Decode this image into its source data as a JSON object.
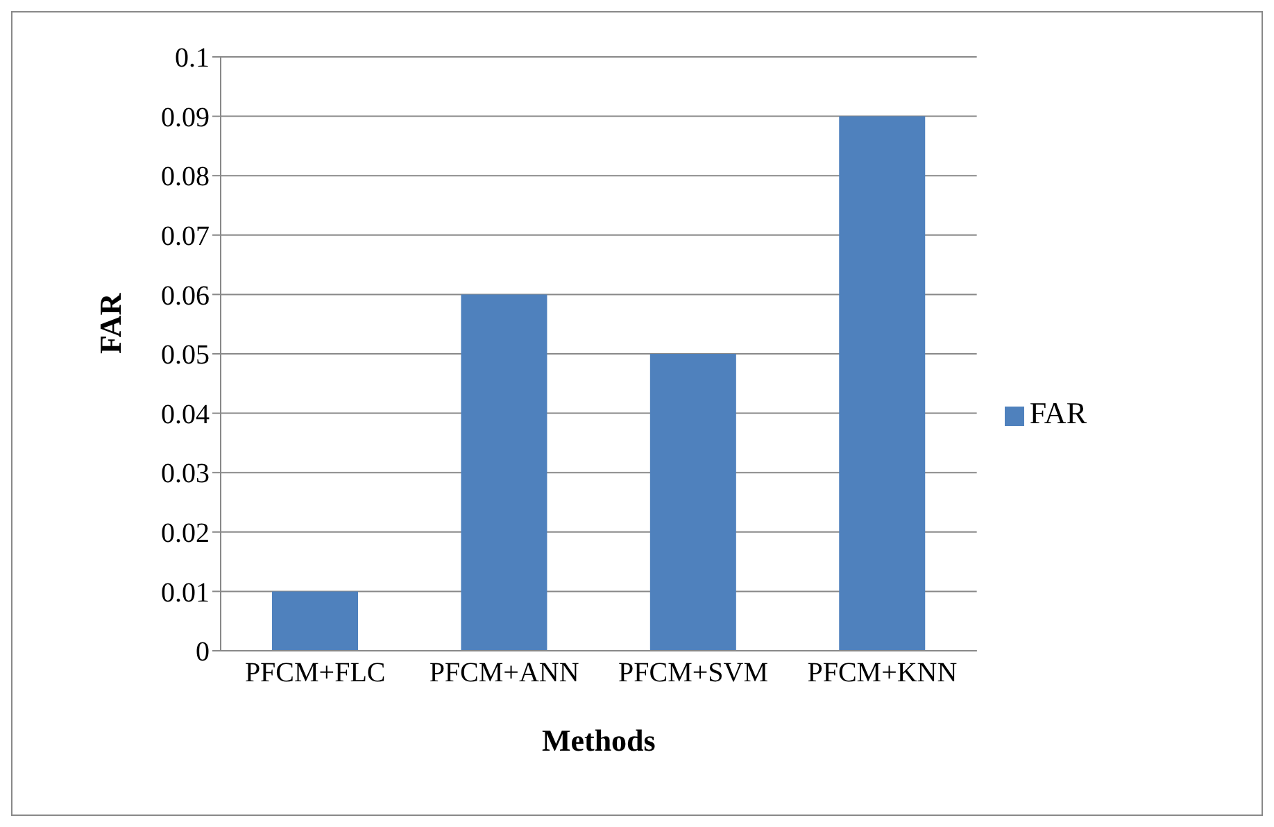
{
  "chart_data": {
    "type": "bar",
    "xlabel": "Methods",
    "ylabel": "FAR",
    "categories": [
      "PFCM+FLC",
      "PFCM+ANN",
      "PFCM+SVM",
      "PFCM+KNN"
    ],
    "series": [
      {
        "name": "FAR",
        "color": "#4f81bd",
        "values": [
          0.01,
          0.06,
          0.05,
          0.09
        ]
      }
    ],
    "ylim": [
      0,
      0.1
    ],
    "yticks": [
      0,
      0.01,
      0.02,
      0.03,
      0.04,
      0.05,
      0.06,
      0.07,
      0.08,
      0.09,
      0.1
    ],
    "grid": "y",
    "legend": "right"
  }
}
